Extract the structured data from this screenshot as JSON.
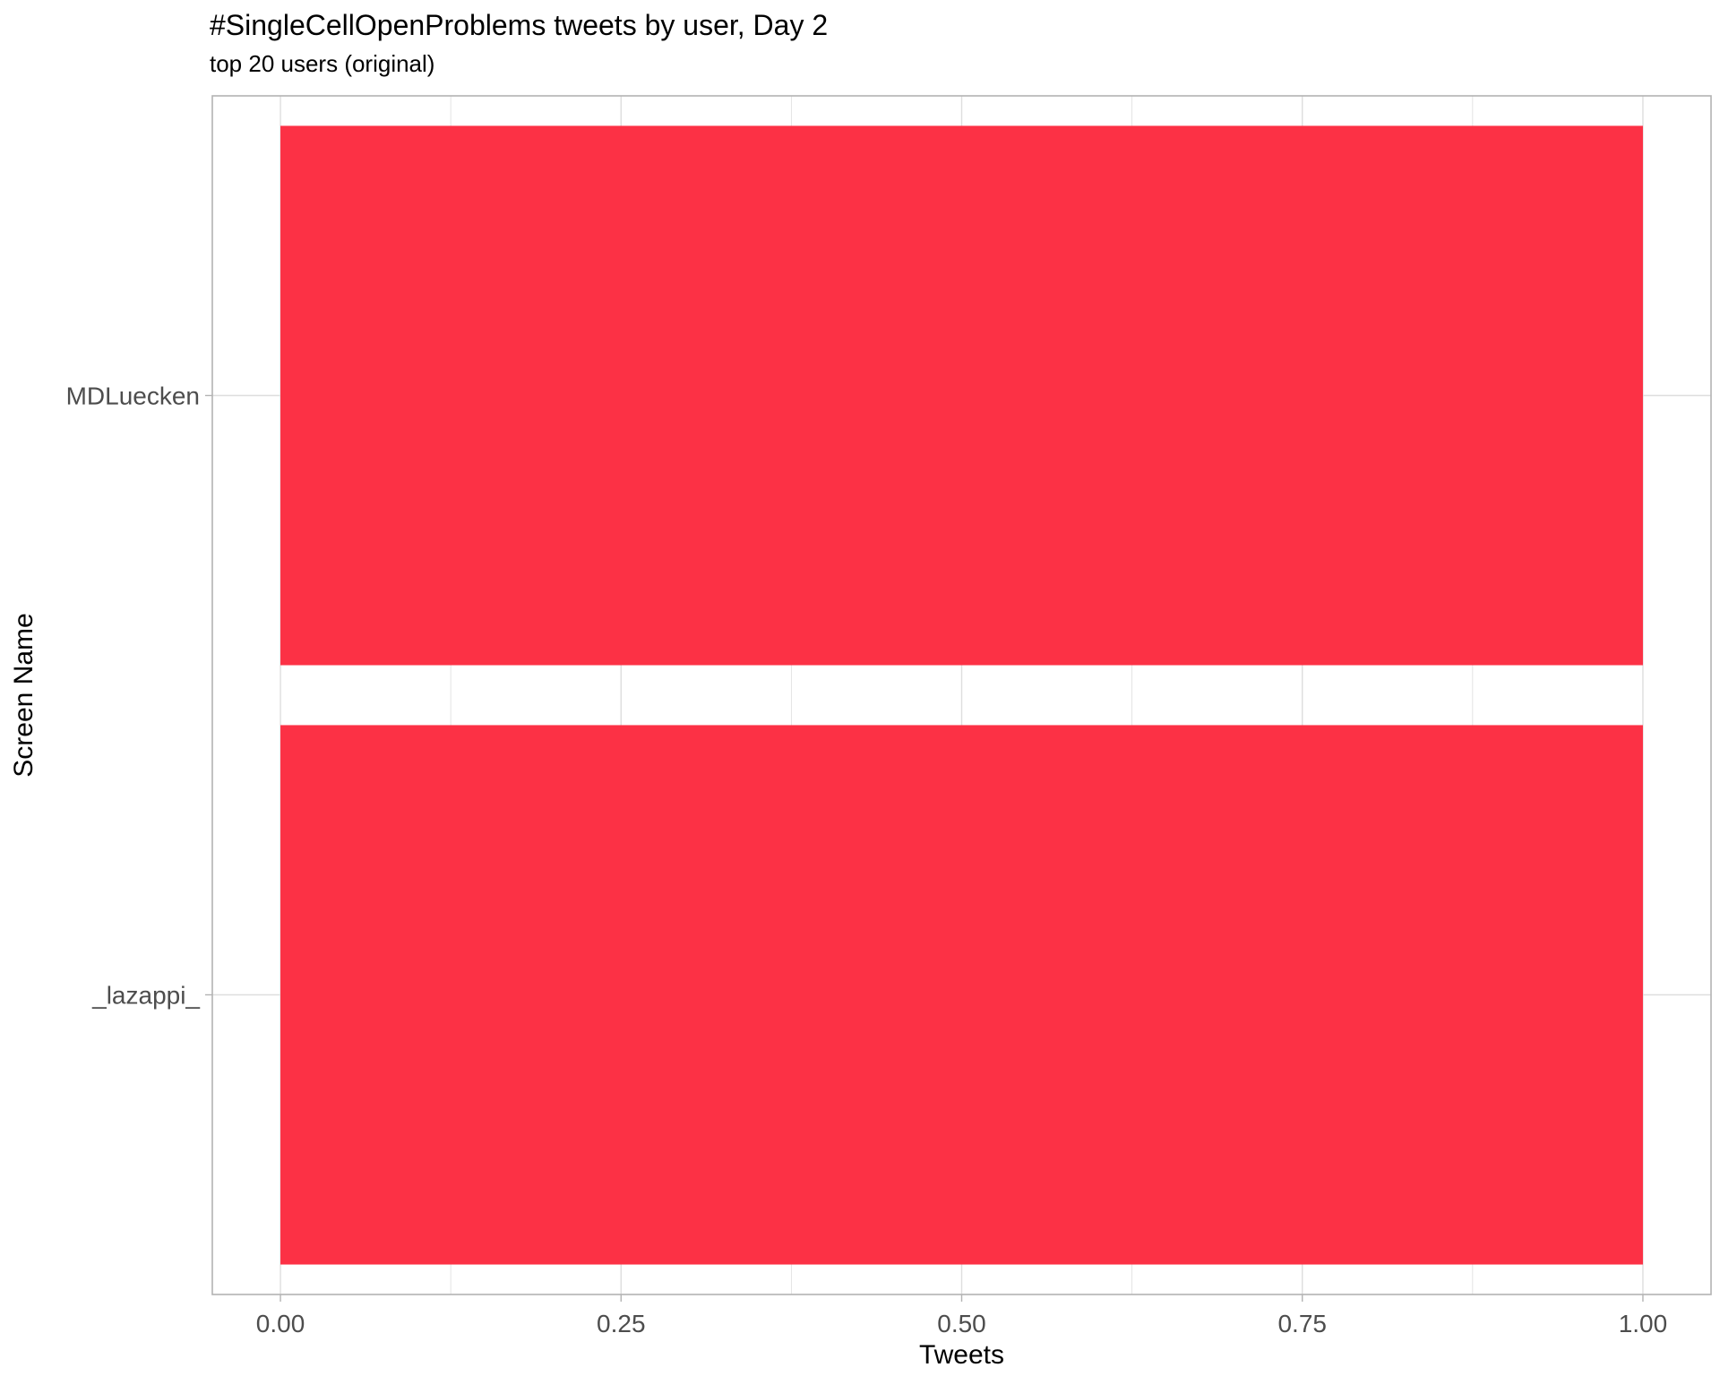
{
  "chart_data": {
    "type": "bar",
    "orientation": "horizontal",
    "title": "#SingleCellOpenProblems tweets by user, Day 2",
    "subtitle": "top 20 users (original)",
    "xlabel": "Tweets",
    "ylabel": "Screen Name",
    "categories": [
      "_lazappi_",
      "MDLuecken"
    ],
    "values": [
      1,
      1
    ],
    "xlim": [
      -0.05,
      1.05
    ],
    "xticks": [
      0,
      0.25,
      0.5,
      0.75,
      1.0
    ],
    "xtick_labels": [
      "0.00",
      "0.25",
      "0.50",
      "0.75",
      "1.00"
    ],
    "grid": true,
    "colors": {
      "bar": "#FC3145",
      "grid": "#dedede",
      "border": "#b3b3b3"
    }
  }
}
